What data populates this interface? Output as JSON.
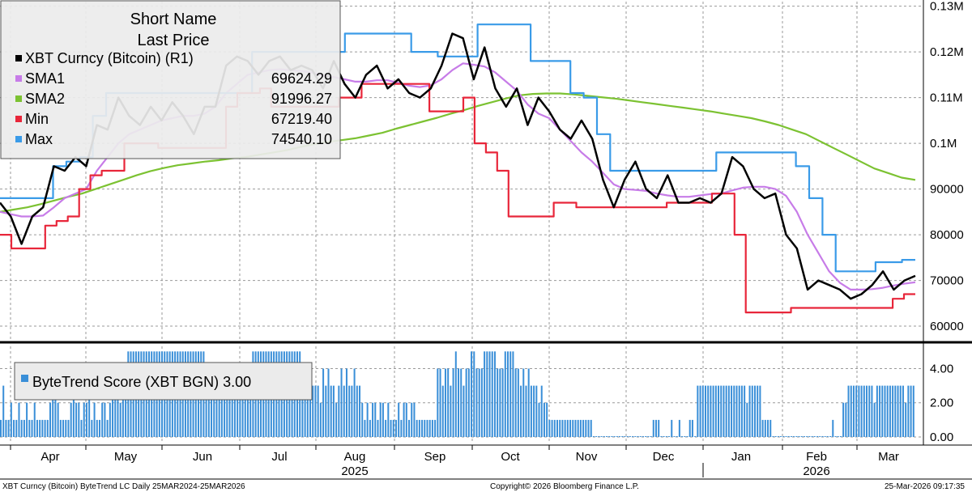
{
  "chart_data": [
    {
      "type": "line",
      "legend_title": [
        "Short Name",
        "Last Price"
      ],
      "legend_position": "top-left",
      "grid": true,
      "y_axis_side": "right",
      "ylim": [
        57000,
        131000
      ],
      "y_ticks": [
        60000,
        70000,
        80000,
        90000,
        100000,
        110000,
        120000,
        130000
      ],
      "y_tick_labels": [
        "60000",
        "70000",
        "80000",
        "90000",
        "0.1M",
        "0.11M",
        "0.12M",
        "0.13M"
      ],
      "x_ticks": [
        "Apr",
        "May",
        "Jun",
        "Jul",
        "Aug",
        "Sep",
        "Oct",
        "Nov",
        "Dec",
        "Jan",
        "Feb",
        "Mar"
      ],
      "x_year_labels": [
        "2025",
        "2026"
      ],
      "series": [
        {
          "name": "XBT Curncy (Bitcoin)  (R1)",
          "value_label": "",
          "color": "#000000",
          "values": [
            87000,
            84000,
            78000,
            84000,
            86000,
            95000,
            94000,
            97000,
            95000,
            104000,
            103000,
            110000,
            106000,
            104000,
            108000,
            105000,
            109000,
            106000,
            102000,
            108000,
            108000,
            117000,
            119000,
            118000,
            115000,
            118000,
            119000,
            116000,
            117000,
            116000,
            112000,
            118000,
            113000,
            110000,
            115000,
            117000,
            112000,
            114000,
            111000,
            110000,
            112000,
            117000,
            124000,
            123000,
            114000,
            121000,
            112000,
            108000,
            112000,
            104000,
            110000,
            107000,
            103000,
            101000,
            105000,
            101000,
            92000,
            86000,
            92000,
            96000,
            90000,
            88000,
            93000,
            87000,
            87000,
            88000,
            87000,
            89000,
            97000,
            95000,
            90000,
            88000,
            89000,
            80000,
            77000,
            68000,
            70000,
            69000,
            68000,
            66000,
            67000,
            69000,
            72000,
            68000,
            70000,
            71000
          ]
        },
        {
          "name": "SMA1",
          "value_label": "69624.29",
          "color": "#c77ce8",
          "values": [
            85000,
            84500,
            84000,
            84000,
            84200,
            86000,
            88000,
            89000,
            90000,
            94000,
            97000,
            100000,
            102000,
            103000,
            104000,
            105000,
            105500,
            106000,
            106000,
            106500,
            108000,
            111000,
            113000,
            115000,
            115500,
            116000,
            116200,
            116000,
            115800,
            115500,
            114800,
            114500,
            114000,
            113500,
            113500,
            113800,
            113800,
            113200,
            112600,
            112300,
            112700,
            114000,
            116000,
            117500,
            117200,
            116800,
            115500,
            113500,
            111500,
            108500,
            106500,
            105500,
            103000,
            100500,
            98000,
            96000,
            93500,
            91000,
            90000,
            89800,
            89600,
            89000,
            88600,
            88300,
            88300,
            88600,
            88900,
            89000,
            89700,
            90300,
            90500,
            90500,
            90000,
            88500,
            85000,
            80000,
            76000,
            72000,
            69500,
            68000,
            68000,
            68100,
            68400,
            68900,
            69300,
            69600
          ]
        },
        {
          "name": "SMA2",
          "value_label": "91996.27",
          "color": "#7cc232",
          "values": [
            85000,
            85500,
            86000,
            86700,
            87500,
            88300,
            89000,
            90000,
            91000,
            92000,
            93000,
            93900,
            94600,
            95200,
            95600,
            96000,
            96300,
            96700,
            97000,
            97500,
            98000,
            98500,
            99200,
            99800,
            100300,
            100700,
            101100,
            101700,
            102300,
            103200,
            104000,
            104800,
            105600,
            106500,
            107300,
            108200,
            109000,
            109800,
            110500,
            110800,
            110900,
            110900,
            110700,
            110400,
            110100,
            109800,
            109400,
            109000,
            108600,
            108200,
            107800,
            107400,
            107000,
            106500,
            106000,
            105500,
            104800,
            104000,
            103000,
            102000,
            100500,
            99000,
            97500,
            96000,
            94500,
            93500,
            92500,
            92000
          ]
        },
        {
          "name": "Min",
          "value_label": "67219.40",
          "color": "#e8263a",
          "values": [
            80000,
            77000,
            77000,
            77000,
            82000,
            83000,
            84000,
            90000,
            93000,
            94000,
            94000,
            100000,
            100000,
            100000,
            99000,
            99000,
            99000,
            99000,
            99000,
            99000,
            108000,
            111000,
            111000,
            112000,
            108000,
            108000,
            108000,
            108000,
            108000,
            108000,
            110000,
            110000,
            113000,
            113000,
            113000,
            113000,
            113000,
            113000,
            107000,
            107000,
            107000,
            110000,
            100000,
            98000,
            94000,
            84000,
            84000,
            84000,
            84000,
            87000,
            87000,
            86000,
            86000,
            86000,
            86000,
            86000,
            86000,
            86000,
            86000,
            87000,
            87000,
            87000,
            87000,
            89000,
            89000,
            80000,
            63000,
            63000,
            63000,
            63000,
            64000,
            64000,
            64000,
            64000,
            64000,
            64000,
            64000,
            64000,
            64000,
            66000,
            67000,
            67000
          ]
        },
        {
          "name": "Max",
          "value_label": "74540.10",
          "color": "#3a9be8",
          "values": [
            88000,
            88000,
            88000,
            88000,
            95000,
            96000,
            97000,
            106000,
            111000,
            111000,
            111000,
            111000,
            111000,
            111000,
            111000,
            111000,
            111000,
            111000,
            111000,
            120000,
            120000,
            120000,
            120000,
            120000,
            120000,
            120000,
            124000,
            124000,
            124000,
            124000,
            124000,
            120000,
            120000,
            119000,
            119000,
            119000,
            126000,
            126000,
            126000,
            126000,
            118000,
            118000,
            118000,
            111000,
            110000,
            102000,
            94000,
            94000,
            94000,
            94000,
            94000,
            94000,
            94000,
            94000,
            98000,
            98000,
            98000,
            98000,
            98000,
            98000,
            95000,
            88000,
            80000,
            72000,
            72000,
            72000,
            74000,
            74000,
            74500,
            74500
          ]
        }
      ]
    },
    {
      "type": "bar",
      "legend": "ByteTrend Score (XBT BGN) 3.00",
      "color": "#3a8fd8",
      "ylim": [
        0,
        5.3
      ],
      "y_ticks": [
        0,
        2,
        4
      ],
      "y_tick_labels": [
        "0.00",
        "2.00",
        "4.00"
      ],
      "values": [
        1,
        3,
        1,
        1,
        2,
        1,
        1,
        2,
        1,
        1,
        2,
        1,
        1,
        2,
        1,
        1,
        1,
        1,
        1,
        2,
        3,
        3,
        2,
        1,
        1,
        1,
        1,
        2,
        3,
        2,
        2,
        1,
        2,
        2,
        3,
        1,
        2,
        1,
        1,
        2,
        2,
        1,
        2,
        3,
        4,
        4,
        2,
        3,
        4,
        5,
        5,
        5,
        5,
        5,
        5,
        5,
        5,
        5,
        5,
        5,
        5,
        5,
        5,
        5,
        5,
        5,
        5,
        5,
        5,
        5,
        5,
        5,
        5,
        5,
        5,
        5,
        5,
        5,
        5,
        3,
        4,
        3,
        3,
        4,
        3,
        3,
        3,
        3,
        4,
        3,
        4,
        3,
        3,
        4,
        3,
        3,
        3,
        5,
        5,
        5,
        5,
        5,
        5,
        5,
        5,
        5,
        5,
        5,
        5,
        5,
        5,
        5,
        5,
        5,
        5,
        5,
        4,
        3,
        3,
        4,
        3,
        3,
        3,
        2,
        4,
        3,
        4,
        3,
        3,
        2,
        3,
        4,
        3,
        4,
        3,
        3,
        4,
        3,
        3,
        2,
        1,
        2,
        1,
        2,
        2,
        1,
        2,
        2,
        1,
        2,
        1,
        1,
        1,
        2,
        1,
        2,
        2,
        1,
        2,
        2,
        1,
        1,
        1,
        1,
        1,
        1,
        1,
        1,
        4,
        4,
        3,
        4,
        4,
        3,
        4,
        5,
        4,
        4,
        3,
        4,
        4,
        5,
        5,
        4,
        4,
        4,
        5,
        5,
        5,
        5,
        5,
        4,
        4,
        4,
        5,
        5,
        5,
        5,
        4,
        4,
        3,
        4,
        3,
        4,
        3,
        3,
        3,
        2,
        3,
        2,
        2,
        1,
        1,
        1,
        1,
        1,
        1,
        1,
        1,
        1,
        1,
        1,
        1,
        1,
        1,
        1,
        1,
        1,
        0,
        0,
        0,
        0,
        0,
        0,
        0,
        0,
        0,
        0,
        0,
        0,
        0,
        0,
        0,
        0,
        0,
        0,
        0,
        0,
        0,
        0,
        0,
        1,
        1,
        1,
        0,
        0,
        0,
        0,
        1,
        0,
        0,
        1,
        0,
        0,
        0,
        1,
        1,
        0,
        3,
        3,
        3,
        3,
        3,
        3,
        3,
        3,
        3,
        3,
        3,
        3,
        3,
        3,
        3,
        3,
        3,
        3,
        3,
        2,
        3,
        3,
        3,
        3,
        3,
        1,
        1,
        1,
        1,
        0,
        0,
        0,
        0,
        0,
        0,
        0,
        0,
        0,
        0,
        0,
        0,
        0,
        0,
        0,
        0,
        0,
        0,
        0,
        0,
        0,
        0,
        0,
        1,
        0,
        0,
        0,
        2,
        2,
        3,
        3,
        3,
        3,
        3,
        3,
        3,
        3,
        3,
        3,
        2,
        3,
        3,
        3,
        3,
        3,
        3,
        3,
        3,
        3,
        3,
        3,
        2,
        3,
        3,
        3
      ]
    }
  ],
  "footer": {
    "left": "XBT Curncy (Bitcoin) ByteTrend LC Daily 25MAR2024-25MAR2026",
    "center": "Copyright© 2026 Bloomberg Finance L.P.",
    "right": "25-Mar-2026 09:17:35"
  }
}
